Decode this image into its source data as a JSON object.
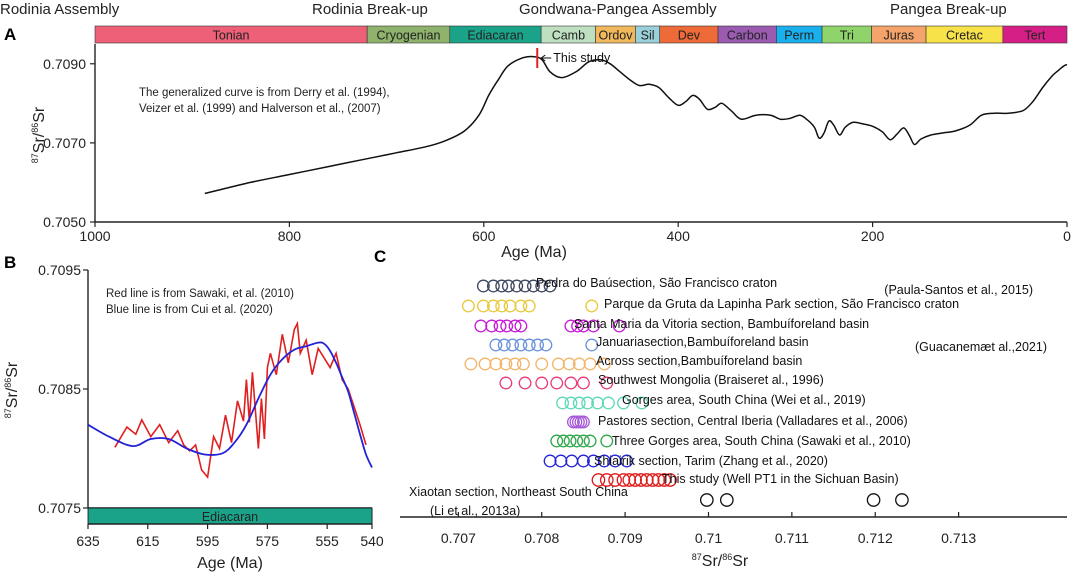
{
  "headings": {
    "rodinia_assembly": "Rodinia Assembly",
    "rodinia_breakup": "Rodinia  Break-up",
    "gondwana_assembly": "Gondwana-Pangea Assembly",
    "pangea_breakup": "Pangea Break-up"
  },
  "panels": {
    "a": "A",
    "b": "B",
    "c": "C"
  },
  "chart_data": [
    {
      "id": "A",
      "type": "line",
      "xlabel": "Age (Ma)",
      "ylabel_num": "87",
      "ylabel_sr1": "Sr/",
      "ylabel_den": "86",
      "ylabel_sr2": "Sr",
      "xlim": [
        1000,
        0
      ],
      "ylim": [
        0.705,
        0.7095
      ],
      "xticks": [
        1000,
        800,
        600,
        400,
        200,
        0
      ],
      "yticks": [
        "0.7050",
        "0.7070",
        "0.7090"
      ],
      "yticks_val": [
        0.705,
        0.707,
        0.709
      ],
      "note_lines": [
        "The generalized curve is from Derry et al. (1994),",
        "Veizer et al. (1999) and Halverson et al., (2007)"
      ],
      "marker": {
        "age": 545,
        "label": "This study",
        "color": "#e02020"
      },
      "periods": [
        {
          "name": "Tonian",
          "start": 1000,
          "end": 720,
          "color": "#ee5f78"
        },
        {
          "name": "Cryogenian",
          "start": 720,
          "end": 635,
          "color": "#8fb36c"
        },
        {
          "name": "Ediacaran",
          "start": 635,
          "end": 541,
          "color": "#1aa389"
        },
        {
          "name": "Camb",
          "start": 541,
          "end": 485,
          "color": "#bfe0c0"
        },
        {
          "name": "Ordov",
          "start": 485,
          "end": 444,
          "color": "#f2b95c"
        },
        {
          "name": "Sil",
          "start": 444,
          "end": 419,
          "color": "#9ad0d9"
        },
        {
          "name": "Dev",
          "start": 419,
          "end": 359,
          "color": "#ee6a38"
        },
        {
          "name": "Carbon",
          "start": 359,
          "end": 299,
          "color": "#9a5bb0"
        },
        {
          "name": "Perm",
          "start": 299,
          "end": 252,
          "color": "#1ab0ee"
        },
        {
          "name": "Tri",
          "start": 252,
          "end": 201,
          "color": "#8fd46b"
        },
        {
          "name": "Juras",
          "start": 201,
          "end": 145,
          "color": "#f4a36a"
        },
        {
          "name": "Cretac",
          "start": 145,
          "end": 66,
          "color": "#f7e24a"
        },
        {
          "name": "Tert",
          "start": 66,
          "end": 0,
          "color": "#d61f86"
        }
      ],
      "series": [
        {
          "name": "Generalized seawater curve",
          "color": "#111111",
          "x": [
            887,
            840,
            800,
            760,
            720,
            690,
            660,
            640,
            620,
            605,
            595,
            585,
            575,
            560,
            548,
            540,
            532,
            520,
            505,
            492,
            480,
            470,
            460,
            450,
            440,
            430,
            420,
            410,
            400,
            392,
            385,
            378,
            370,
            362,
            355,
            345,
            335,
            320,
            305,
            295,
            285,
            275,
            268,
            260,
            255,
            250,
            245,
            240,
            234,
            228,
            220,
            210,
            200,
            190,
            182,
            175,
            168,
            162,
            157,
            150,
            140,
            128,
            115,
            100,
            88,
            75,
            60,
            45,
            35,
            25,
            15,
            8,
            3,
            0
          ],
          "y": [
            0.70572,
            0.706,
            0.7062,
            0.7064,
            0.7066,
            0.70675,
            0.7069,
            0.70705,
            0.7073,
            0.7077,
            0.7082,
            0.7086,
            0.70895,
            0.70915,
            0.70918,
            0.7091,
            0.7088,
            0.70865,
            0.7088,
            0.70905,
            0.7091,
            0.709,
            0.7088,
            0.7086,
            0.70845,
            0.70848,
            0.7084,
            0.70815,
            0.70795,
            0.70805,
            0.7082,
            0.7081,
            0.70785,
            0.7079,
            0.708,
            0.7078,
            0.7076,
            0.7077,
            0.7077,
            0.7076,
            0.70762,
            0.7077,
            0.7076,
            0.7074,
            0.70712,
            0.70725,
            0.70755,
            0.70745,
            0.7072,
            0.7074,
            0.70752,
            0.70748,
            0.70742,
            0.70728,
            0.70708,
            0.70722,
            0.70738,
            0.70718,
            0.70696,
            0.7071,
            0.7072,
            0.70725,
            0.7073,
            0.70745,
            0.7077,
            0.70775,
            0.70775,
            0.70782,
            0.70805,
            0.7084,
            0.7087,
            0.70885,
            0.70895,
            0.70898
          ]
        }
      ]
    },
    {
      "id": "B",
      "type": "line",
      "xlabel": "Age (Ma)",
      "ylabel_num": "87",
      "ylabel_sr1": "Sr/",
      "ylabel_den": "86",
      "ylabel_sr2": "Sr",
      "xlim": [
        635,
        540
      ],
      "ylim": [
        0.7075,
        0.7095
      ],
      "xticks": [
        635,
        615,
        595,
        575,
        555,
        540
      ],
      "yticks": [
        "0.7075",
        "0.7085",
        "0.7095"
      ],
      "yticks_val": [
        0.7075,
        0.7085,
        0.7095
      ],
      "period_bar": {
        "label": "Ediacaran",
        "color": "#1aa389"
      },
      "notes": [
        "Red line is from Sawaki, et al. (2010)",
        "Blue line is from Cui et al. (2020)"
      ],
      "series": [
        {
          "name": "Sawaki et al. (2010)",
          "color": "#e02020",
          "x": [
            626,
            622,
            619,
            617,
            614,
            611,
            608,
            605,
            603,
            601,
            599,
            597,
            595,
            593,
            591,
            589,
            587,
            585,
            583,
            582,
            581,
            580,
            578,
            577,
            576,
            575,
            574,
            572,
            570,
            568,
            566,
            565,
            564,
            562,
            560,
            558,
            556,
            554,
            552,
            550,
            548,
            546,
            544,
            542
          ],
          "y": [
            0.70801,
            0.70818,
            0.70812,
            0.70824,
            0.7081,
            0.7082,
            0.70805,
            0.70815,
            0.70803,
            0.70798,
            0.70803,
            0.70782,
            0.70776,
            0.7081,
            0.708,
            0.70828,
            0.70805,
            0.7084,
            0.70823,
            0.70858,
            0.70822,
            0.70864,
            0.708,
            0.70842,
            0.70808,
            0.70868,
            0.7088,
            0.70862,
            0.70896,
            0.70872,
            0.709,
            0.70905,
            0.7088,
            0.70891,
            0.70862,
            0.70884,
            0.70876,
            0.70868,
            0.7088,
            0.70858,
            0.7085,
            0.70835,
            0.7082,
            0.70803
          ]
        },
        {
          "name": "Cui et al. (2020)",
          "color": "#2323d8",
          "x": [
            635,
            628,
            620,
            614,
            608,
            602,
            596,
            590,
            586,
            582,
            578,
            574,
            570,
            566,
            562,
            558,
            556,
            554,
            552,
            550,
            548,
            546,
            544,
            542,
            540
          ],
          "y": [
            0.7082,
            0.7081,
            0.70802,
            0.70808,
            0.70808,
            0.708,
            0.70795,
            0.70796,
            0.70805,
            0.7082,
            0.70842,
            0.70862,
            0.70875,
            0.70883,
            0.70886,
            0.70889,
            0.70888,
            0.70882,
            0.70872,
            0.7086,
            0.70848,
            0.7083,
            0.70812,
            0.70795,
            0.70784
          ]
        }
      ]
    },
    {
      "id": "C",
      "type": "scatter",
      "xlabel_num": "87",
      "xlabel_sr1": "Sr/",
      "xlabel_den": "86",
      "xlabel_sr2": "Sr",
      "xlim": [
        0.7063,
        0.7143
      ],
      "xticks": [
        "0.707",
        "0.708",
        "0.709",
        "0.71",
        "0.711",
        "0.712",
        "0.713"
      ],
      "xticks_val": [
        0.707,
        0.708,
        0.709,
        0.71,
        0.711,
        0.712,
        0.713
      ],
      "series": [
        {
          "name": "Pedra do Baúsection, São Francisco craton",
          "ref": "(Paula-Santos et al., 2015)",
          "color": "#3d4660",
          "values": [
            0.7073,
            0.70742,
            0.70752,
            0.7076,
            0.7077,
            0.7078,
            0.7079,
            0.708,
            0.7081
          ]
        },
        {
          "name": "Parque da Gruta da Lapinha Park section, São Francisco craton",
          "ref": "",
          "color": "#e8c93a",
          "values": [
            0.70712,
            0.7073,
            0.70742,
            0.70752,
            0.70762,
            0.70775,
            0.70785,
            0.7086
          ]
        },
        {
          "name": "Santa Maria da Vitoria section, Bambuíforeland basin",
          "ref": "",
          "color": "#c81ad8",
          "values": [
            0.70727,
            0.7074,
            0.7075,
            0.70758,
            0.70768,
            0.70775,
            0.70835,
            0.70843,
            0.7085,
            0.70862,
            0.70893
          ]
        },
        {
          "name": "Januariasection,Bambuíforeland basin",
          "ref": "(Guacanemæt al.,2021)",
          "color": "#6a92dc",
          "values": [
            0.70745,
            0.70755,
            0.70765,
            0.70775,
            0.70785,
            0.70795,
            0.70805,
            0.7086
          ]
        },
        {
          "name": "Across section,Bambuíforeland basin",
          "ref": "",
          "color": "#f2b56a",
          "values": [
            0.70715,
            0.70732,
            0.70745,
            0.70757,
            0.70768,
            0.70778,
            0.708,
            0.7082,
            0.70833,
            0.70845,
            0.70858,
            0.70875
          ]
        },
        {
          "name": "Southwest Mongolia (Braiseret al., 1996)",
          "ref": "",
          "color": "#e83a7a",
          "values": [
            0.70757,
            0.7078,
            0.708,
            0.70818,
            0.70835,
            0.7085,
            0.70878
          ]
        },
        {
          "name": "Gorges area, South China (Wei et al., 2019)",
          "ref": "",
          "color": "#5fd8b8",
          "values": [
            0.70825,
            0.70835,
            0.70845,
            0.70855,
            0.70867,
            0.7088,
            0.70898,
            0.7092
          ]
        },
        {
          "name": "Pastores section, Central Iberia (Valladares et al., 2006)",
          "ref": "",
          "color": "#a65ad8",
          "values": [
            0.70838,
            0.70841,
            0.70844,
            0.70847,
            0.7085
          ]
        },
        {
          "name": "Three Gorges area, South China (Sawaki et al., 2010)",
          "ref": "",
          "color": "#2ea84a",
          "values": [
            0.70818,
            0.70826,
            0.70834,
            0.70842,
            0.7085,
            0.70858,
            0.70878
          ]
        },
        {
          "name": "Shiairik section, Tarim (Zhang et al., 2020)",
          "ref": "",
          "color": "#2323d8",
          "values": [
            0.7081,
            0.70823,
            0.70836,
            0.7085,
            0.70862,
            0.70875,
            0.70888,
            0.70902
          ]
        },
        {
          "name": "This study (Well PT1 in the Sichuan Basin)",
          "ref": "",
          "color": "#e01818",
          "values": [
            0.70868,
            0.70878,
            0.70888,
            0.70898,
            0.70905,
            0.70912,
            0.70919,
            0.70926,
            0.70933,
            0.7094,
            0.70947,
            0.70954
          ]
        },
        {
          "name": "Xiaotan section, Northeast South China",
          "ref": "(Li et al., 2013a)",
          "color": "#111111",
          "values": [
            0.70998,
            0.71022,
            0.71198,
            0.71232
          ]
        }
      ]
    }
  ]
}
